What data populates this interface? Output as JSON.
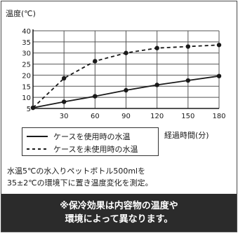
{
  "chart_data": {
    "type": "line",
    "ylabel": "温度(℃)",
    "xlabel": "経過時間(分)",
    "x_ticks": [
      30,
      60,
      90,
      120,
      150,
      180
    ],
    "y_ticks": [
      5,
      10,
      15,
      20,
      25,
      30,
      35,
      40
    ],
    "xlim": [
      0,
      180
    ],
    "ylim": [
      5,
      40
    ],
    "grid": true,
    "series": [
      {
        "name": "ケースを使用時の水温",
        "style": "solid",
        "x": [
          0,
          30,
          60,
          90,
          120,
          150,
          180
        ],
        "y": [
          5.3,
          8,
          10.5,
          13.2,
          15.6,
          17.6,
          19.6
        ]
      },
      {
        "name": "ケースを未使用時の水温",
        "style": "dashed",
        "x": [
          0,
          30,
          60,
          90,
          120,
          150,
          180
        ],
        "y": [
          5.3,
          18.6,
          26.3,
          30,
          32.2,
          32.9,
          33.6
        ]
      }
    ]
  },
  "note_lines": [
    "水温5℃の水入りペットボトル500mlを",
    "35±2℃の環境下に置き温度変化を測定。"
  ],
  "banner_lines": [
    "※保冷効果は内容物の温度や",
    "環境によって異なります。"
  ],
  "colors": {
    "line": "#1a1a1a",
    "grid": "#555555",
    "banner_bg": "#2b2b2b",
    "banner_text": "#ffffff"
  }
}
